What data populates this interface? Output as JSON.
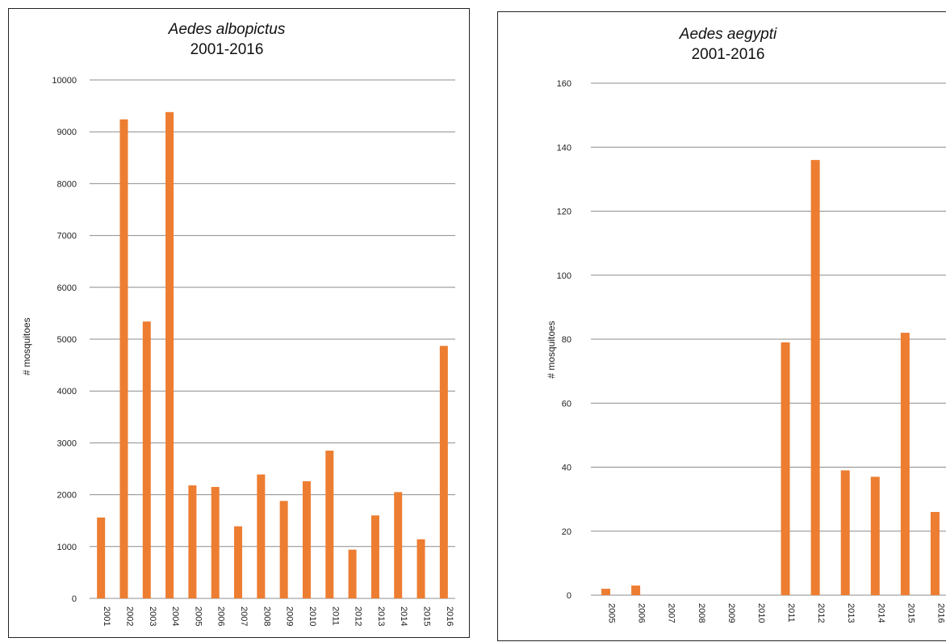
{
  "chart_data": [
    {
      "type": "bar",
      "title": "Aedes albopictus",
      "subtitle": "2001-2016",
      "xlabel": "",
      "ylabel": "# mosquitoes",
      "ylim": [
        0,
        10000
      ],
      "yticks": [
        0,
        1000,
        2000,
        3000,
        4000,
        5000,
        6000,
        7000,
        8000,
        9000,
        10000
      ],
      "grid": true,
      "bar_color": "#ED7D31",
      "categories": [
        "2001",
        "2002",
        "2003",
        "2004",
        "2005",
        "2006",
        "2007",
        "2008",
        "2009",
        "2010",
        "2011",
        "2012",
        "2013",
        "2014",
        "2015",
        "2016"
      ],
      "values": [
        1560,
        9240,
        5340,
        9380,
        2180,
        2150,
        1390,
        2390,
        1880,
        2260,
        2850,
        940,
        1600,
        2050,
        1140,
        4870
      ]
    },
    {
      "type": "bar",
      "title": "Aedes aegypti",
      "subtitle": "2001-2016",
      "xlabel": "",
      "ylabel": "# mosquitoes",
      "ylim": [
        0,
        160
      ],
      "yticks": [
        0,
        20,
        40,
        60,
        80,
        100,
        120,
        140,
        160
      ],
      "grid": true,
      "bar_color": "#ED7D31",
      "categories": [
        "2005",
        "2006",
        "2007",
        "2008",
        "2009",
        "2010",
        "2011",
        "2012",
        "2013",
        "2014",
        "2015",
        "2016"
      ],
      "values": [
        2,
        3,
        0,
        0,
        0,
        0,
        79,
        136,
        39,
        37,
        82,
        26
      ]
    }
  ]
}
